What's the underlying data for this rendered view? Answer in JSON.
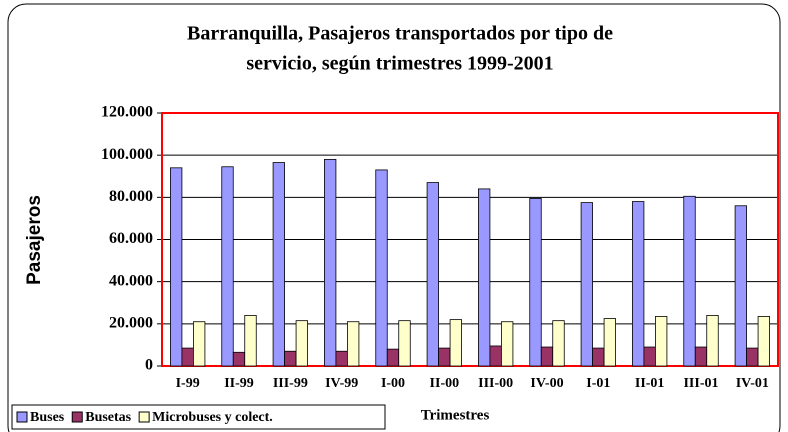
{
  "chart_data": {
    "type": "bar",
    "title": "Barranquilla, Pasajeros transportados por tipo de servicio, según trimestres 1999-2001",
    "title_lines": [
      "Barranquilla, Pasajeros transportados por tipo de",
      "servicio, según trimestres 1999-2001"
    ],
    "xlabel": "Trimestres",
    "ylabel": "Pasajeros",
    "categories": [
      "I-99",
      "II-99",
      "III-99",
      "IV-99",
      "I-00",
      "II-00",
      "III-00",
      "IV-00",
      "I-01",
      "II-01",
      "III-01",
      "IV-01"
    ],
    "series": [
      {
        "name": "Buses",
        "color": "#9999ff",
        "values": [
          94000,
          94500,
          96500,
          98000,
          93000,
          87000,
          84000,
          79500,
          77500,
          78000,
          80500,
          76000
        ]
      },
      {
        "name": "Busetas",
        "color": "#993366",
        "values": [
          8500,
          6500,
          7000,
          7000,
          8000,
          8500,
          9500,
          9000,
          8500,
          9000,
          9000,
          8500
        ]
      },
      {
        "name": "Microbuses y colect.",
        "color": "#ffffcc",
        "values": [
          21000,
          24000,
          21500,
          21000,
          21500,
          22000,
          21000,
          21500,
          22500,
          23500,
          24000,
          23500
        ]
      }
    ],
    "ylim": [
      0,
      120000
    ],
    "yticks": [
      0,
      {
        "value": 20000,
        "label": "20.000"
      },
      {
        "value": 40000,
        "label": "40.000"
      },
      {
        "value": 60000,
        "label": "60.000"
      },
      {
        "value": 80000,
        "label": "80.000"
      },
      {
        "value": 100000,
        "label": "100.000"
      },
      {
        "value": 120000,
        "label": "120.000"
      }
    ],
    "grid": true,
    "legend": "bottom-left",
    "plot_border_color": "#ff0000"
  }
}
